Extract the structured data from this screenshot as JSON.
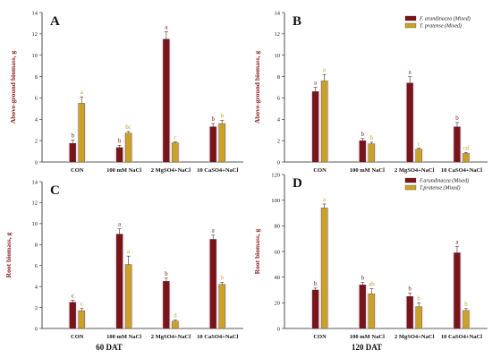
{
  "colors": {
    "farundinacea": "#7a1416",
    "tpratense": "#c9a227",
    "sig_farundinacea": "#7a1416",
    "sig_tpratense": "#c9a227"
  },
  "footer": {
    "left": "60 DAT",
    "right": "120 DAT"
  },
  "chart_data": [
    {
      "panel": "A",
      "type": "bar",
      "ylabel": "Above-ground biomass, g",
      "ylim": [
        0,
        14
      ],
      "yticks": [
        0,
        2,
        4,
        6,
        8,
        10,
        12,
        14
      ],
      "categories": [
        "CON",
        "100 mM NaCl",
        "2 MgSO4+NaCl",
        "10 CaSO4+NaCl"
      ],
      "series": [
        {
          "key": "farundinacea",
          "values": [
            1.75,
            1.35,
            11.5,
            3.3
          ],
          "errors": [
            0.3,
            0.2,
            0.7,
            0.3
          ],
          "letters": [
            "b",
            "b",
            "a",
            "b"
          ]
        },
        {
          "key": "tpratense",
          "values": [
            5.5,
            2.7,
            1.8,
            3.6
          ],
          "errors": [
            0.6,
            0.15,
            0.1,
            0.3
          ],
          "letters": [
            "a",
            "bc",
            "c",
            "b"
          ]
        }
      ],
      "legend": null
    },
    {
      "panel": "B",
      "type": "bar",
      "ylabel": "Above-ground biomass, g",
      "ylim": [
        0,
        14
      ],
      "yticks": [
        0,
        2,
        4,
        6,
        8,
        10,
        12,
        14
      ],
      "categories": [
        "CON",
        "100 mM NaCl",
        "2 MgSO4+NaCl",
        "10 CaSO4+NaCl"
      ],
      "series": [
        {
          "key": "farundinacea",
          "name": "F. arundinacea (Mixed)",
          "values": [
            6.6,
            2.0,
            7.4,
            3.3
          ],
          "errors": [
            0.4,
            0.2,
            0.6,
            0.4
          ],
          "letters": [
            "a",
            "b",
            "a",
            "b"
          ]
        },
        {
          "key": "tpratense",
          "name": "T. pratense (Mixed)",
          "values": [
            7.6,
            1.7,
            1.2,
            0.8
          ],
          "errors": [
            0.6,
            0.15,
            0.1,
            0.1
          ],
          "letters": [
            "a",
            "b",
            "c",
            "cd"
          ]
        }
      ],
      "legend": "top-right"
    },
    {
      "panel": "C",
      "type": "bar",
      "ylabel": "Root biomass, g",
      "ylim": [
        0,
        14
      ],
      "yticks": [
        0,
        2,
        4,
        6,
        8,
        10,
        12,
        14
      ],
      "categories": [
        "CON",
        "100 mM NaCl",
        "2 MgSO4+NaCl",
        "10 CaSO4+NaCl"
      ],
      "series": [
        {
          "key": "farundinacea",
          "values": [
            2.5,
            9.0,
            4.5,
            8.5
          ],
          "errors": [
            0.2,
            0.5,
            0.3,
            0.4
          ],
          "letters": [
            "c",
            "a",
            "b",
            "a"
          ]
        },
        {
          "key": "tpratense",
          "values": [
            1.7,
            6.1,
            0.7,
            4.2
          ],
          "errors": [
            0.2,
            0.8,
            0.1,
            0.2
          ],
          "letters": [
            "c",
            "a",
            "d",
            "b"
          ]
        }
      ],
      "legend": null
    },
    {
      "panel": "D",
      "type": "bar",
      "ylabel": "Root biomass, g",
      "ylim": [
        0,
        120
      ],
      "yticks": [
        0,
        20,
        40,
        60,
        80,
        100,
        120
      ],
      "categories": [
        "CON",
        "100 mM NaCl",
        "2 MgSO4+NaCl",
        "10 CaSO4+NaCl"
      ],
      "series": [
        {
          "key": "farundinacea",
          "name": "F.arundinacea (Mixed)",
          "values": [
            30,
            34,
            25,
            59
          ],
          "errors": [
            1.5,
            2,
            2.5,
            5
          ],
          "letters": [
            "b",
            "b",
            "b",
            "a"
          ]
        },
        {
          "key": "tpratense",
          "name": "T.pratense (Mixed)",
          "values": [
            94,
            27,
            17,
            14
          ],
          "errors": [
            3,
            4,
            3,
            1.5
          ],
          "letters": [
            "a",
            "ab",
            "b",
            "b"
          ]
        }
      ],
      "legend": "top-right"
    }
  ]
}
